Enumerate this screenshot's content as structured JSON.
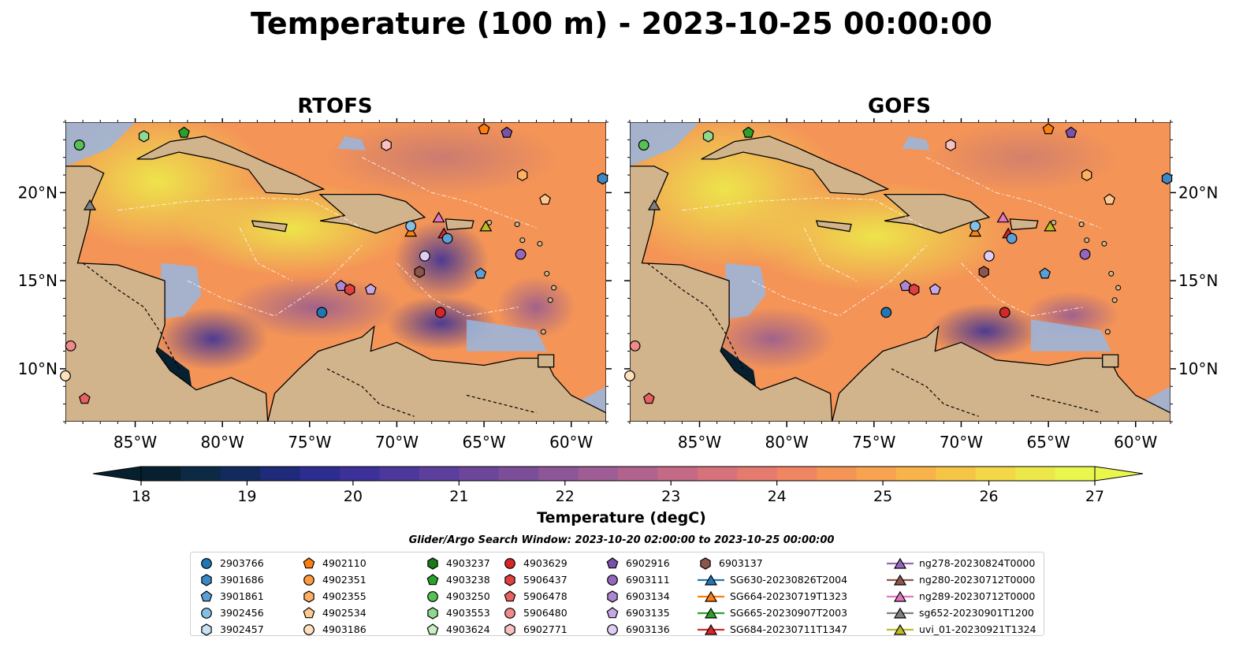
{
  "title": "Temperature (100 m) - 2023-10-25 00:00:00",
  "colors": {
    "land": "#d2b48c",
    "shallow": "#98b6e0",
    "coast": "#000000"
  },
  "chart_data": {
    "type": "heatmap",
    "panels": [
      {
        "title": "RTOFS"
      },
      {
        "title": "GOFS"
      }
    ],
    "x_ticks": [
      "85°W",
      "80°W",
      "75°W",
      "70°W",
      "65°W",
      "60°W"
    ],
    "x_tick_values": [
      -85,
      -80,
      -75,
      -70,
      -65,
      -60
    ],
    "y_ticks": [
      "20°N",
      "15°N",
      "10°N"
    ],
    "y_tick_values": [
      20,
      15,
      10
    ],
    "xlim": [
      -89,
      -58
    ],
    "ylim": [
      7,
      24
    ],
    "colorbar": {
      "label": "Temperature (degC)",
      "ticks": [
        "18",
        "19",
        "20",
        "21",
        "22",
        "23",
        "24",
        "25",
        "26",
        "27"
      ],
      "min": 18,
      "max": 27,
      "colors": [
        "#07202f",
        "#0d2a44",
        "#132a5e",
        "#1e2a7a",
        "#2c2d8f",
        "#3c3198",
        "#4c379b",
        "#5c3e9c",
        "#6c469b",
        "#7c4e99",
        "#8d5697",
        "#9e5d94",
        "#b1638e",
        "#c46a86",
        "#d6727c",
        "#e57b6e",
        "#ef8661",
        "#f49457",
        "#f7a34f",
        "#f8b34a",
        "#f7c546",
        "#f3d746",
        "#ede84a",
        "#e8f64e"
      ]
    },
    "search_window": "Glider/Argo Search Window: 2023-10-20 02:00:00 to 2023-10-25 00:00:00",
    "legend_columns": [
      [
        {
          "label": "2903766",
          "marker": "circle",
          "color": "#1f77b4"
        },
        {
          "label": "3901686",
          "marker": "hexagon",
          "color": "#3c88c4"
        },
        {
          "label": "3901861",
          "marker": "pentagon",
          "color": "#5aa0d6"
        },
        {
          "label": "3902456",
          "marker": "circle",
          "color": "#86bfe6"
        },
        {
          "label": "3902457",
          "marker": "hexagon",
          "color": "#c6e0f4"
        }
      ],
      [
        {
          "label": "4902110",
          "marker": "pentagon",
          "color": "#ff7f0e"
        },
        {
          "label": "4902351",
          "marker": "circle",
          "color": "#ff9a3d"
        },
        {
          "label": "4902355",
          "marker": "hexagon",
          "color": "#ffb060"
        },
        {
          "label": "4902534",
          "marker": "pentagon",
          "color": "#ffc890"
        },
        {
          "label": "4903186",
          "marker": "circle",
          "color": "#ffe0bd"
        }
      ],
      [
        {
          "label": "4903237",
          "marker": "hexagon",
          "color": "#1a7a1a"
        },
        {
          "label": "4903238",
          "marker": "pentagon",
          "color": "#2ca02c"
        },
        {
          "label": "4903250",
          "marker": "circle",
          "color": "#57c157"
        },
        {
          "label": "4903553",
          "marker": "hexagon",
          "color": "#8fd88f"
        },
        {
          "label": "4903624",
          "marker": "pentagon",
          "color": "#c8efc0"
        }
      ],
      [
        {
          "label": "4903629",
          "marker": "circle",
          "color": "#d62728"
        },
        {
          "label": "5906437",
          "marker": "hexagon",
          "color": "#e0403f"
        },
        {
          "label": "5906478",
          "marker": "pentagon",
          "color": "#e86060"
        },
        {
          "label": "5906480",
          "marker": "circle",
          "color": "#f08a8a"
        },
        {
          "label": "6902771",
          "marker": "hexagon",
          "color": "#f8c0c0"
        }
      ],
      [
        {
          "label": "6902916",
          "marker": "pentagon",
          "color": "#7b52ab"
        },
        {
          "label": "6903111",
          "marker": "circle",
          "color": "#9467bd"
        },
        {
          "label": "6903134",
          "marker": "hexagon",
          "color": "#ad88d0"
        },
        {
          "label": "6903135",
          "marker": "pentagon",
          "color": "#c6a8e4"
        },
        {
          "label": "6903136",
          "marker": "circle",
          "color": "#e0cdf5"
        }
      ],
      [
        {
          "label": "6903137",
          "marker": "hexagon",
          "color": "#8c564b"
        },
        {
          "label": "SG630-20230826T2004",
          "marker": "triangle",
          "color": "#1f77b4"
        },
        {
          "label": "SG664-20230719T1323",
          "marker": "triangle",
          "color": "#ff7f0e"
        },
        {
          "label": "SG665-20230907T2003",
          "marker": "triangle",
          "color": "#2ca02c"
        },
        {
          "label": "SG684-20230711T1347",
          "marker": "triangle",
          "color": "#d62728"
        }
      ],
      [
        {
          "label": "ng278-20230824T0000",
          "marker": "triangle",
          "color": "#9467bd"
        },
        {
          "label": "ng280-20230712T0000",
          "marker": "triangle",
          "color": "#8c564b"
        },
        {
          "label": "ng289-20230712T0000",
          "marker": "triangle",
          "color": "#e377c2"
        },
        {
          "label": "sg652-20230901T1200",
          "marker": "triangle",
          "color": "#7f7f7f"
        },
        {
          "label": "uvi_01-20230921T1324",
          "marker": "triangle",
          "color": "#bcbd22"
        }
      ]
    ],
    "markers": [
      {
        "lon": -88.2,
        "lat": 22.7,
        "marker": "circle",
        "color": "#57c157"
      },
      {
        "lon": -84.5,
        "lat": 23.2,
        "marker": "hexagon",
        "color": "#8fd88f"
      },
      {
        "lon": -82.2,
        "lat": 23.4,
        "marker": "pentagon",
        "color": "#2ca02c"
      },
      {
        "lon": -65.0,
        "lat": 23.6,
        "marker": "pentagon",
        "color": "#ff7f0e"
      },
      {
        "lon": -63.7,
        "lat": 23.4,
        "marker": "pentagon",
        "color": "#7b52ab"
      },
      {
        "lon": -70.6,
        "lat": 22.7,
        "marker": "hexagon",
        "color": "#f8c0c0"
      },
      {
        "lon": -62.8,
        "lat": 21.0,
        "marker": "hexagon",
        "color": "#ffb060"
      },
      {
        "lon": -58.2,
        "lat": 20.8,
        "marker": "hexagon",
        "color": "#3c88c4"
      },
      {
        "lon": -61.5,
        "lat": 19.6,
        "marker": "pentagon",
        "color": "#ffc890"
      },
      {
        "lon": -87.6,
        "lat": 19.3,
        "marker": "triangle",
        "color": "#7f7f7f"
      },
      {
        "lon": -69.2,
        "lat": 17.8,
        "marker": "triangle",
        "color": "#ff7f0e"
      },
      {
        "lon": -69.2,
        "lat": 18.1,
        "marker": "circle",
        "color": "#86bfe6"
      },
      {
        "lon": -67.6,
        "lat": 18.6,
        "marker": "triangle",
        "color": "#e377c2"
      },
      {
        "lon": -67.3,
        "lat": 17.7,
        "marker": "triangle",
        "color": "#d62728"
      },
      {
        "lon": -67.1,
        "lat": 17.4,
        "marker": "circle",
        "color": "#5aa0d6"
      },
      {
        "lon": -64.9,
        "lat": 18.1,
        "marker": "triangle",
        "color": "#bcbd22"
      },
      {
        "lon": -68.4,
        "lat": 16.4,
        "marker": "circle",
        "color": "#e0cdf5"
      },
      {
        "lon": -62.9,
        "lat": 16.5,
        "marker": "circle",
        "color": "#9467bd"
      },
      {
        "lon": -68.7,
        "lat": 15.5,
        "marker": "hexagon",
        "color": "#8c564b"
      },
      {
        "lon": -65.2,
        "lat": 15.4,
        "marker": "pentagon",
        "color": "#5aa0d6"
      },
      {
        "lon": -73.2,
        "lat": 14.7,
        "marker": "pentagon",
        "color": "#ad88d0"
      },
      {
        "lon": -72.7,
        "lat": 14.5,
        "marker": "hexagon",
        "color": "#e0403f"
      },
      {
        "lon": -71.5,
        "lat": 14.5,
        "marker": "pentagon",
        "color": "#c6a8e4"
      },
      {
        "lon": -74.3,
        "lat": 13.2,
        "marker": "circle",
        "color": "#1f77b4"
      },
      {
        "lon": -67.5,
        "lat": 13.2,
        "marker": "circle",
        "color": "#d62728"
      },
      {
        "lon": -88.7,
        "lat": 11.3,
        "marker": "circle",
        "color": "#f08a8a"
      },
      {
        "lon": -89.0,
        "lat": 9.6,
        "marker": "circle",
        "color": "#ffe0bd"
      },
      {
        "lon": -87.9,
        "lat": 8.3,
        "marker": "pentagon",
        "color": "#e86060"
      }
    ]
  }
}
